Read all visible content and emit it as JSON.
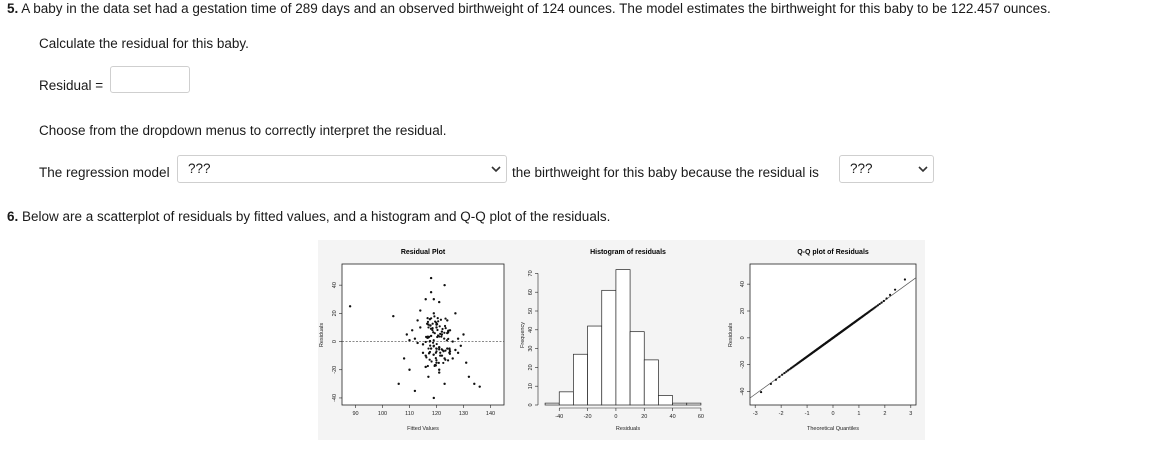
{
  "q5": {
    "number": "5.",
    "prompt": " A baby in the data set had a gestation time of 289 days and an observed birthweight of 124 ounces. The model estimates the birthweight for this baby to be 122.457 ounces.",
    "calc_instruction": "Calculate the residual for this baby.",
    "residual_label": "Residual =",
    "residual_value": "",
    "dropdown_instruction": "Choose from the dropdown menus to correctly interpret the residual.",
    "sentence_start": "The regression model",
    "select1_value": "???",
    "sentence_middle": "the birthweight for this baby because the residual is",
    "select2_value": "???"
  },
  "q6": {
    "number": "6.",
    "prompt": " Below are a scatterplot of residuals by fitted values, and a histogram and Q-Q plot of the residuals."
  },
  "chart_data": [
    {
      "type": "scatter",
      "title": "Residual Plot",
      "xlabel": "Fitted Values",
      "ylabel": "Residuals",
      "xlim": [
        85,
        145
      ],
      "ylim": [
        -45,
        55
      ],
      "xticks": [
        90,
        100,
        110,
        120,
        130,
        140
      ],
      "yticks": [
        -40,
        -20,
        0,
        20,
        40
      ],
      "reference_line": 0,
      "x": [
        88,
        104,
        106,
        108,
        109,
        110,
        111,
        112,
        113,
        114,
        115,
        116,
        116,
        117,
        117,
        118,
        118,
        119,
        119,
        120,
        120,
        121,
        121,
        122,
        122,
        123,
        123,
        124,
        124,
        125,
        126,
        127,
        128,
        129,
        130,
        131,
        132,
        134,
        136,
        112,
        115,
        118,
        121,
        124,
        127,
        110,
        113,
        117,
        119,
        122,
        125,
        128,
        114,
        116,
        120,
        123,
        126,
        118,
        121,
        119
      ],
      "y": [
        25,
        18,
        -30,
        -12,
        5,
        -20,
        8,
        -35,
        15,
        22,
        -8,
        30,
        -18,
        12,
        -25,
        35,
        -5,
        20,
        -40,
        10,
        -15,
        28,
        -22,
        5,
        -10,
        40,
        -30,
        15,
        -5,
        8,
        -12,
        20,
        -8,
        -3,
        5,
        -15,
        -25,
        -30,
        -32,
        2,
        -2,
        4,
        -4,
        6,
        -6,
        1,
        -1,
        3,
        -3,
        7,
        -7,
        2,
        10,
        -10,
        12,
        -12,
        0,
        45,
        -20,
        30
      ]
    },
    {
      "type": "bar",
      "title": "Histogram of residuals",
      "xlabel": "Residuals",
      "ylabel": "Frequency",
      "xticks": [
        -40,
        -20,
        0,
        20,
        40,
        60
      ],
      "yticks": [
        0,
        10,
        20,
        30,
        40,
        50,
        60,
        70
      ],
      "bin_edges": [
        -50,
        -40,
        -30,
        -20,
        -10,
        0,
        10,
        20,
        30,
        40,
        50,
        60
      ],
      "values": [
        1,
        7,
        27,
        42,
        61,
        72,
        39,
        24,
        5,
        1,
        1
      ],
      "ylim": [
        0,
        75
      ]
    },
    {
      "type": "scatter",
      "title": "Q-Q plot of Residuals",
      "xlabel": "Theoretical Quantiles",
      "ylabel": "Residuals",
      "xlim": [
        -3.2,
        3.2
      ],
      "ylim": [
        -50,
        55
      ],
      "xticks": [
        -3,
        -2,
        -1,
        0,
        1,
        2,
        3
      ],
      "yticks": [
        -40,
        -20,
        0,
        20,
        40
      ],
      "reference_line": "y = 14*x"
    }
  ]
}
